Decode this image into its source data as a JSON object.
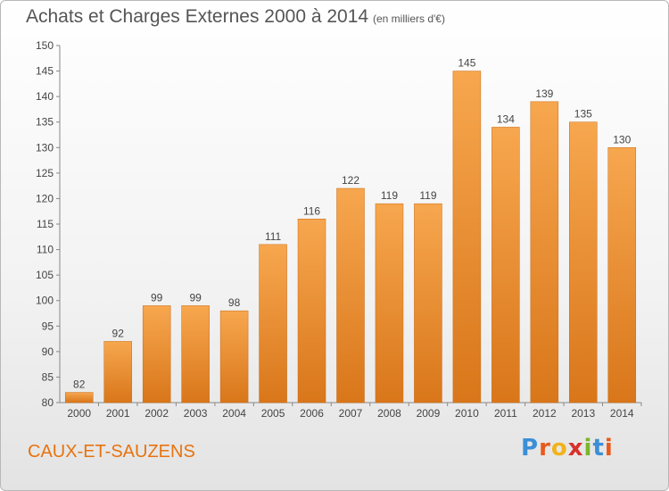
{
  "header": {
    "title": "Achats et Charges Externes 2000 à 2014",
    "unit": "(en milliers d'€)"
  },
  "footer": {
    "commune": "CAUX-ET-SAUZENS",
    "logo": "Proxiti"
  },
  "colors": {
    "bar_light": "#f7a74f",
    "bar_dark": "#d9761a",
    "title": "#555555",
    "commune": "#e8730f"
  },
  "chart_data": {
    "type": "bar",
    "title": "Achats et Charges Externes 2000 à 2014",
    "subtitle": "(en milliers d'€)",
    "categories": [
      "2000",
      "2001",
      "2002",
      "2003",
      "2004",
      "2005",
      "2006",
      "2007",
      "2008",
      "2009",
      "2010",
      "2011",
      "2012",
      "2013",
      "2014"
    ],
    "values": [
      82,
      92,
      99,
      99,
      98,
      111,
      116,
      122,
      119,
      119,
      145,
      134,
      139,
      135,
      130
    ],
    "ylim": [
      80,
      150
    ],
    "yticks": [
      80,
      85,
      90,
      95,
      100,
      105,
      110,
      115,
      120,
      125,
      130,
      135,
      140,
      145,
      150
    ],
    "data_labels": true,
    "grid": false,
    "legend": "none"
  }
}
